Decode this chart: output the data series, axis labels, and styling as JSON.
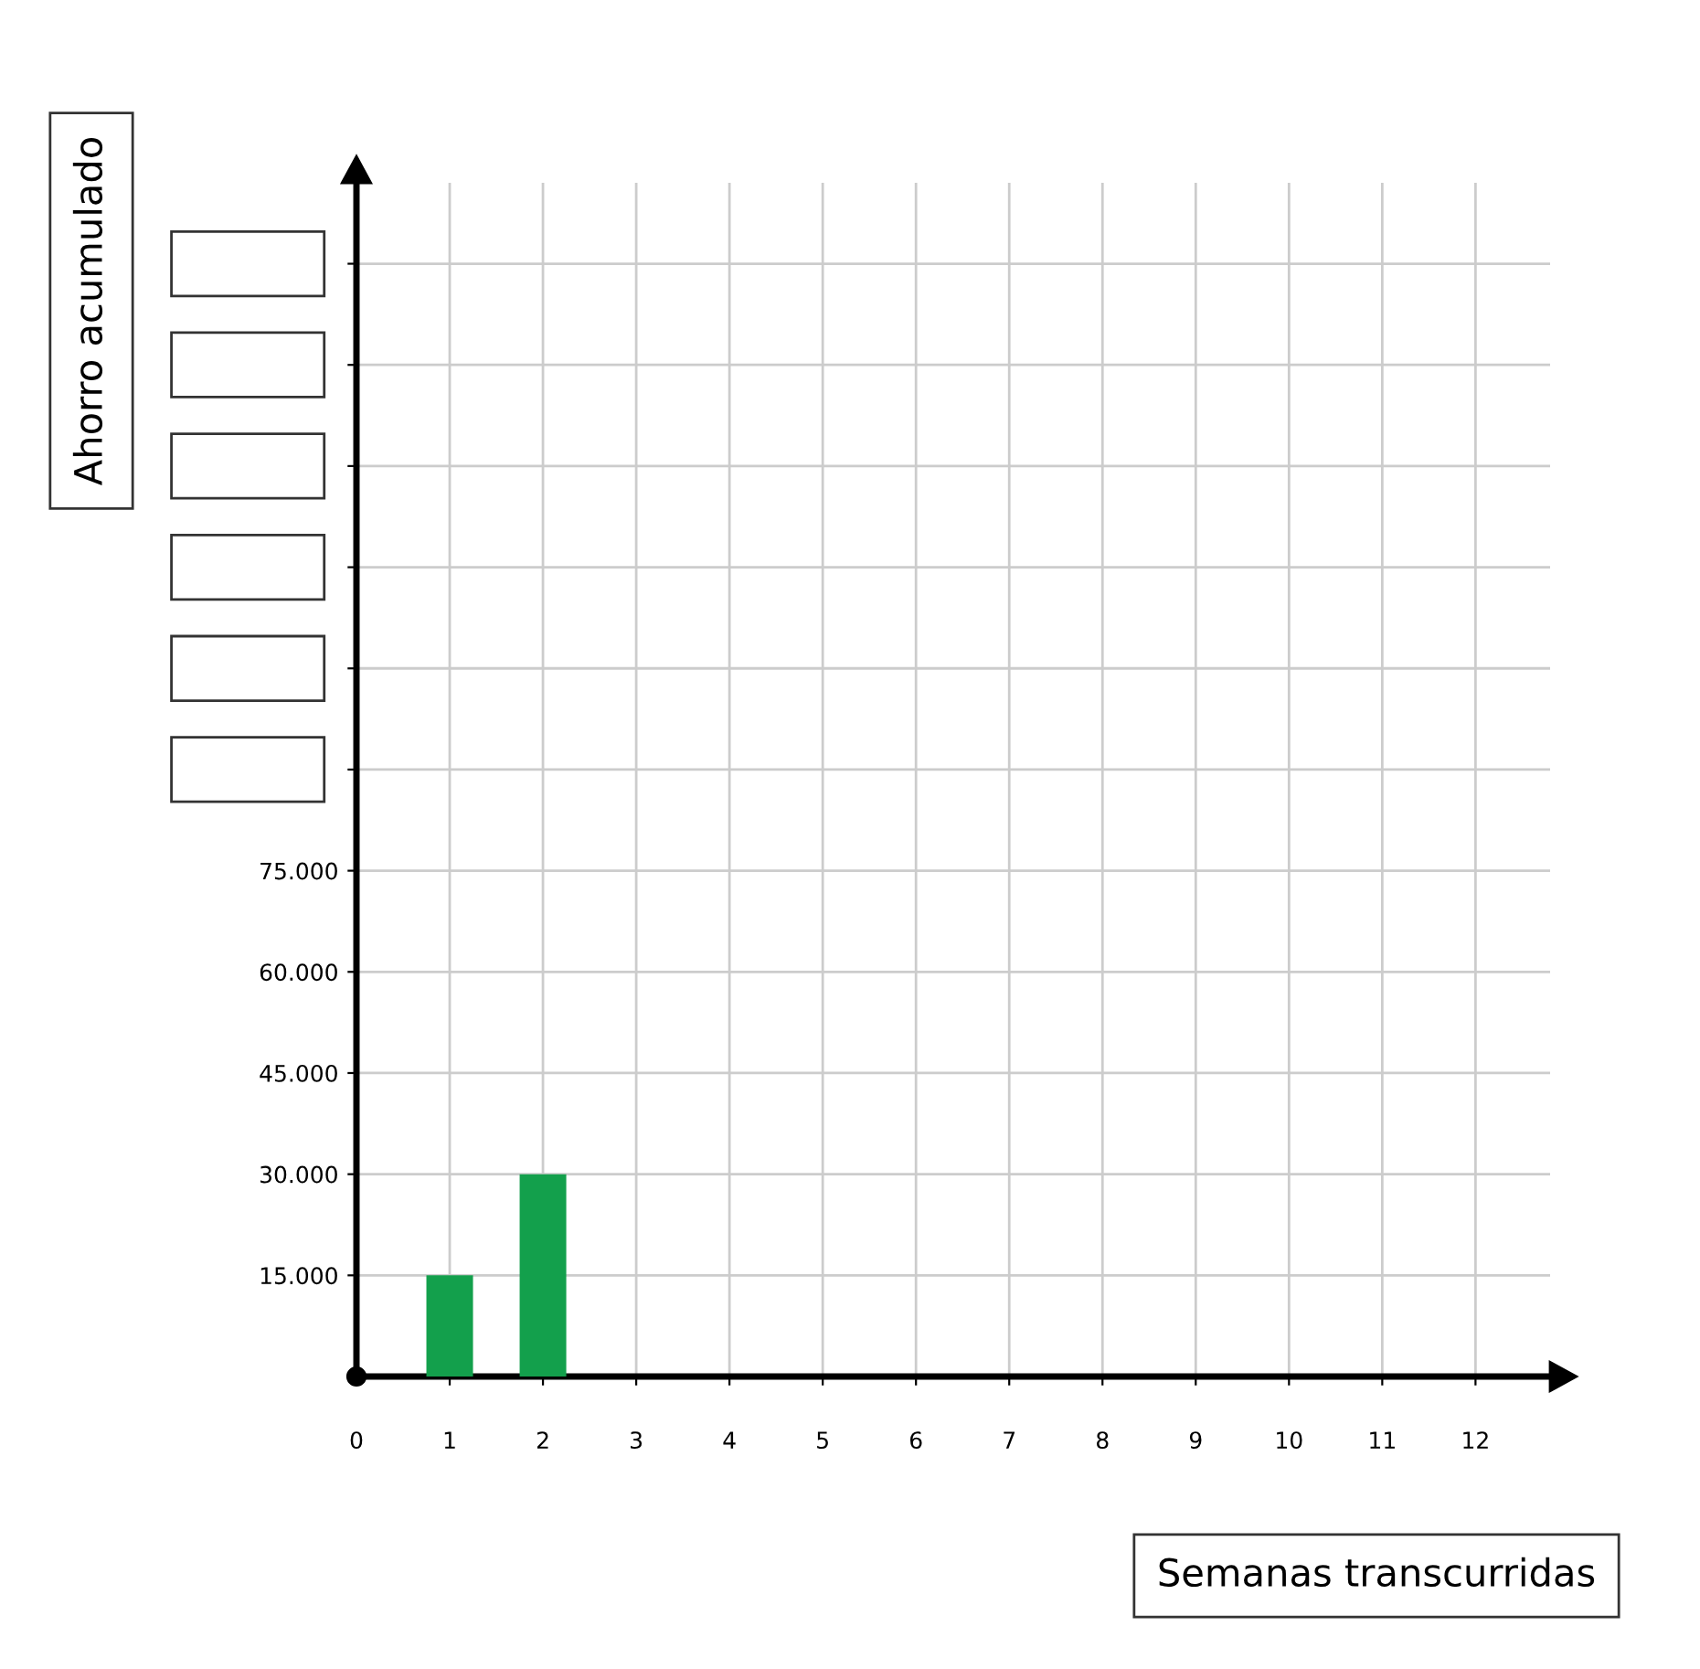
{
  "chart_data": {
    "type": "bar",
    "xlabel": "Semanas transcurridas",
    "ylabel": "Ahorro acumulado",
    "x": [
      1,
      2
    ],
    "values": [
      15000,
      30000
    ],
    "color": "#13a04c",
    "xlim": [
      0,
      12.8
    ],
    "xticks": [
      0,
      1,
      2,
      3,
      4,
      5,
      6,
      7,
      8,
      9,
      10,
      11,
      12
    ],
    "ylim": [
      0,
      177000
    ],
    "yticks": [
      {
        "value": 15000,
        "label": "15.000"
      },
      {
        "value": 30000,
        "label": "30.000"
      },
      {
        "value": 45000,
        "label": "45.000"
      },
      {
        "value": 60000,
        "label": "60.000"
      },
      {
        "value": 75000,
        "label": "75.000"
      },
      {
        "value": 90000,
        "label": null
      },
      {
        "value": 105000,
        "label": null
      },
      {
        "value": 120000,
        "label": null
      },
      {
        "value": 135000,
        "label": null
      },
      {
        "value": 150000,
        "label": null
      },
      {
        "value": 165000,
        "label": null
      }
    ],
    "grid": true
  }
}
